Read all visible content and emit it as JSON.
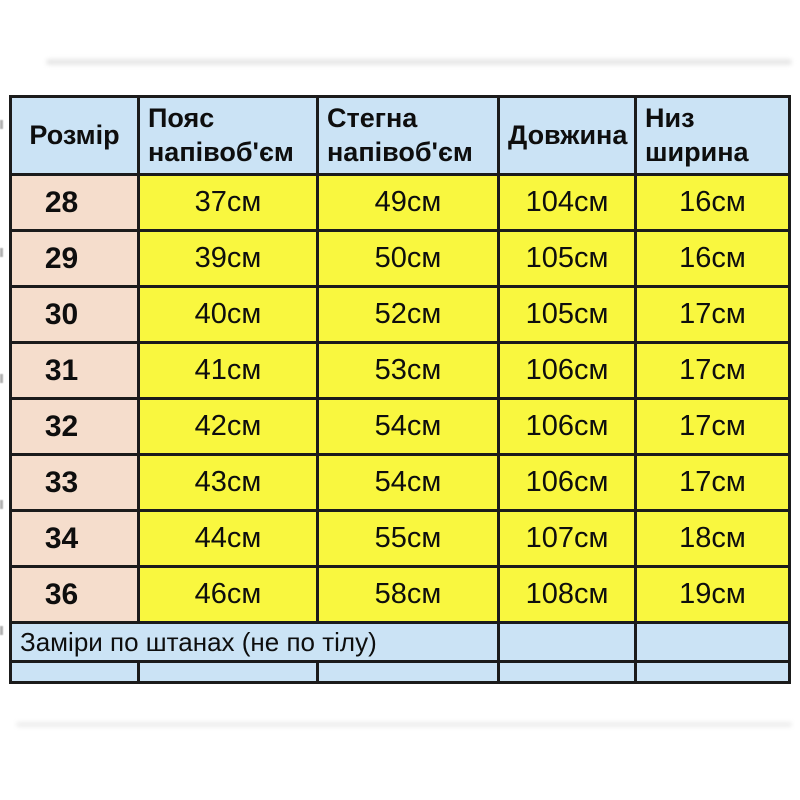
{
  "chart_data": {
    "type": "table",
    "columns": [
      "Розмір",
      "Пояс напівоб'єм",
      "Стегна напівоб'єм",
      "Довжина",
      "Низ ширина"
    ],
    "rows": [
      [
        "28",
        "37см",
        "49см",
        "104см",
        "16см"
      ],
      [
        "29",
        "39см",
        "50см",
        "105см",
        "16см"
      ],
      [
        "30",
        "40см",
        "52см",
        "105см",
        "17см"
      ],
      [
        "31",
        "41см",
        "53см",
        "106см",
        "17см"
      ],
      [
        "32",
        "42см",
        "54см",
        "106см",
        "17см"
      ],
      [
        "33",
        "43см",
        "54см",
        "106см",
        "17см"
      ],
      [
        "34",
        "44см",
        "55см",
        "107см",
        "18см"
      ],
      [
        "36",
        "46см",
        "58см",
        "108см",
        "19см"
      ]
    ],
    "note": "Заміри по штанах (не по тілу)",
    "layout_hints": {
      "header_row_bg": "#cbe3f5",
      "size_column_bg": "#f5ddcc",
      "value_cells_bg": "#f9f73f",
      "footer_rows_bg": "#cbe3f5",
      "grid": "on"
    }
  },
  "colors": {
    "header_blue": "#cbe3f5",
    "size_pink": "#f5ddcc",
    "value_yellow": "#f9f73f",
    "border_black": "#1b1b1b",
    "page_white": "#ffffff"
  }
}
